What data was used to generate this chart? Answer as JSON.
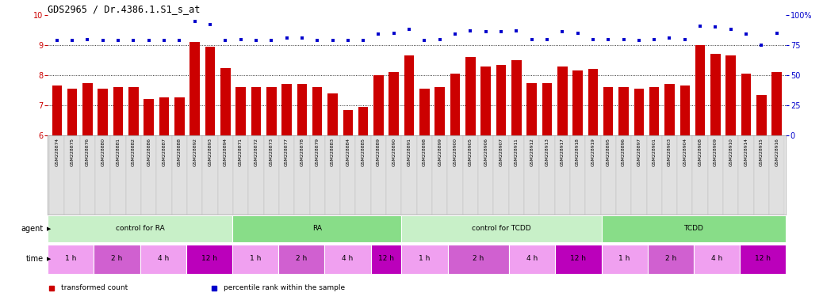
{
  "title": "GDS2965 / Dr.4386.1.S1_s_at",
  "samples": [
    "GSM228874",
    "GSM228875",
    "GSM228876",
    "GSM228880",
    "GSM228881",
    "GSM228882",
    "GSM228886",
    "GSM228887",
    "GSM228888",
    "GSM228892",
    "GSM228893",
    "GSM228894",
    "GSM228871",
    "GSM228872",
    "GSM228873",
    "GSM228877",
    "GSM228878",
    "GSM228879",
    "GSM228883",
    "GSM228884",
    "GSM228885",
    "GSM228889",
    "GSM228890",
    "GSM228891",
    "GSM228898",
    "GSM228899",
    "GSM228900",
    "GSM228905",
    "GSM228906",
    "GSM228907",
    "GSM228911",
    "GSM228912",
    "GSM228913",
    "GSM228917",
    "GSM228918",
    "GSM228919",
    "GSM228895",
    "GSM228896",
    "GSM228897",
    "GSM228901",
    "GSM228903",
    "GSM228904",
    "GSM228908",
    "GSM228909",
    "GSM228910",
    "GSM228914",
    "GSM228915",
    "GSM228916"
  ],
  "bar_values": [
    7.65,
    7.55,
    7.75,
    7.55,
    7.6,
    7.6,
    7.2,
    7.25,
    7.25,
    9.1,
    8.95,
    8.25,
    7.6,
    7.6,
    7.6,
    7.7,
    7.7,
    7.6,
    7.4,
    6.85,
    6.95,
    8.0,
    8.1,
    8.65,
    7.55,
    7.6,
    8.05,
    8.6,
    8.3,
    8.35,
    8.5,
    7.75,
    7.75,
    8.3,
    8.15,
    8.2,
    7.6,
    7.6,
    7.55,
    7.6,
    7.7,
    7.65,
    9.0,
    8.7,
    8.65,
    8.05,
    7.35,
    8.1
  ],
  "percentile_values": [
    79,
    79,
    80,
    79,
    79,
    79,
    79,
    79,
    79,
    95,
    92,
    79,
    80,
    79,
    79,
    81,
    81,
    79,
    79,
    79,
    79,
    84,
    85,
    88,
    79,
    80,
    84,
    87,
    86,
    86,
    87,
    80,
    80,
    86,
    85,
    80,
    80,
    80,
    79,
    80,
    81,
    80,
    91,
    90,
    88,
    84,
    75,
    85
  ],
  "agent_groups": [
    {
      "label": "control for RA",
      "start": 0,
      "end": 11,
      "color": "#c8f0c8"
    },
    {
      "label": "RA",
      "start": 12,
      "end": 22,
      "color": "#88dd88"
    },
    {
      "label": "control for TCDD",
      "start": 23,
      "end": 35,
      "color": "#c8f0c8"
    },
    {
      "label": "TCDD",
      "start": 36,
      "end": 47,
      "color": "#88dd88"
    }
  ],
  "time_groups": [
    {
      "label": "1 h",
      "start": 0,
      "end": 2,
      "color": "#f0a0f0"
    },
    {
      "label": "2 h",
      "start": 3,
      "end": 5,
      "color": "#d060d0"
    },
    {
      "label": "4 h",
      "start": 6,
      "end": 8,
      "color": "#f0a0f0"
    },
    {
      "label": "12 h",
      "start": 9,
      "end": 11,
      "color": "#bb00bb"
    },
    {
      "label": "1 h",
      "start": 12,
      "end": 14,
      "color": "#f0a0f0"
    },
    {
      "label": "2 h",
      "start": 15,
      "end": 17,
      "color": "#d060d0"
    },
    {
      "label": "4 h",
      "start": 18,
      "end": 20,
      "color": "#f0a0f0"
    },
    {
      "label": "12 h",
      "start": 21,
      "end": 22,
      "color": "#bb00bb"
    },
    {
      "label": "1 h",
      "start": 23,
      "end": 25,
      "color": "#f0a0f0"
    },
    {
      "label": "2 h",
      "start": 26,
      "end": 29,
      "color": "#d060d0"
    },
    {
      "label": "4 h",
      "start": 30,
      "end": 32,
      "color": "#f0a0f0"
    },
    {
      "label": "12 h",
      "start": 33,
      "end": 35,
      "color": "#bb00bb"
    },
    {
      "label": "1 h",
      "start": 36,
      "end": 38,
      "color": "#f0a0f0"
    },
    {
      "label": "2 h",
      "start": 39,
      "end": 41,
      "color": "#d060d0"
    },
    {
      "label": "4 h",
      "start": 42,
      "end": 44,
      "color": "#f0a0f0"
    },
    {
      "label": "12 h",
      "start": 45,
      "end": 47,
      "color": "#bb00bb"
    }
  ],
  "bar_color": "#cc0000",
  "dot_color": "#0000cc",
  "ylim_left": [
    6,
    10
  ],
  "ylim_right": [
    0,
    100
  ],
  "yticks_left": [
    6,
    7,
    8,
    9,
    10
  ],
  "yticks_right": [
    0,
    25,
    50,
    75,
    100
  ],
  "grid_values": [
    7,
    8,
    9
  ],
  "bar_width": 0.65,
  "fig_width": 10.38,
  "fig_height": 3.84,
  "legend_items": [
    {
      "label": "transformed count",
      "color": "#cc0000"
    },
    {
      "label": "percentile rank within the sample",
      "color": "#0000cc"
    }
  ]
}
